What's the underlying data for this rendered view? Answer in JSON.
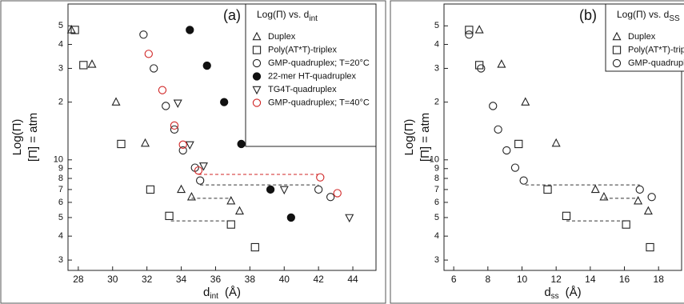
{
  "chart_data": [
    {
      "type": "scatter",
      "panel_label": "(a)",
      "legend_title": "Log(Π)  vs.  d",
      "legend_title_sub": "int",
      "xlabel": "d",
      "xlabel_sub": "int",
      "xlabel_unit": "(Å)",
      "ylabel": "Log(Π)",
      "ylabel2": "[Π] = atm",
      "xlim": [
        27.4,
        45.35
      ],
      "xticks": [
        28,
        30,
        32,
        34,
        36,
        38,
        40,
        42,
        44
      ],
      "ylim": [
        2.65,
        65
      ],
      "ylog": true,
      "yticks": [
        3,
        4,
        5,
        6,
        7,
        8,
        9,
        10,
        {
          "value": 20,
          "label": "2"
        },
        {
          "value": 30,
          "label": "3"
        },
        {
          "value": 40,
          "label": "4"
        },
        {
          "value": 50,
          "label": "5"
        }
      ],
      "series": [
        {
          "name": "Duplex",
          "marker": "triangle",
          "color": "#222222",
          "filled": false,
          "x": [
            27.6,
            28.8,
            30.2,
            31.9,
            34.0,
            34.6,
            36.9,
            37.4
          ],
          "values": [
            47.6,
            31.5,
            20,
            12.2,
            7.0,
            6.4,
            6.1,
            5.4
          ]
        },
        {
          "name": "Poly(AT*T)-triplex",
          "marker": "square",
          "color": "#222222",
          "filled": false,
          "x": [
            27.8,
            28.3,
            30.5,
            32.2,
            33.3,
            36.9,
            38.3
          ],
          "values": [
            47.6,
            31.2,
            12.1,
            7.0,
            5.1,
            4.6,
            3.5
          ]
        },
        {
          "name": "GMP-quadruplex; T=20°C",
          "marker": "circle",
          "color": "#222222",
          "filled": false,
          "x": [
            31.8,
            32.4,
            33.1,
            33.6,
            34.1,
            34.8,
            35.1,
            42.0,
            42.7
          ],
          "values": [
            45,
            30,
            19.1,
            14.4,
            11.2,
            9.1,
            7.8,
            7.0,
            6.4
          ]
        },
        {
          "name": "22-mer HT-quadruplex",
          "marker": "circle",
          "color": "#111111",
          "filled": true,
          "x": [
            34.5,
            35.5,
            36.5,
            37.5,
            39.2,
            40.4
          ],
          "values": [
            47.6,
            31,
            20,
            12.1,
            7.0,
            5.0
          ]
        },
        {
          "name": "TG4T-quadruplex",
          "marker": "triangle-down",
          "color": "#222222",
          "filled": false,
          "x": [
            33.8,
            34.5,
            35.3,
            40.0,
            43.8
          ],
          "values": [
            19.8,
            12,
            9.3,
            7.0,
            5.0
          ]
        },
        {
          "name": "GMP-quadruplex; T=40°C",
          "marker": "circle",
          "color": "#d02424",
          "filled": false,
          "x": [
            32.1,
            32.9,
            33.6,
            34.1,
            35.0,
            42.1,
            43.1
          ],
          "values": [
            35.7,
            23.1,
            15.1,
            12,
            8.8,
            8.1,
            6.7
          ]
        }
      ],
      "guides": [
        {
          "x": [
            35.0,
            42.0
          ],
          "y": 8.4,
          "color": "#d02424"
        },
        {
          "x": [
            35.1,
            42.0
          ],
          "y": 7.4,
          "color": "#333333"
        },
        {
          "x": [
            34.6,
            36.9
          ],
          "y": 6.3,
          "color": "#333333"
        },
        {
          "x": [
            33.4,
            36.9
          ],
          "y": 4.8,
          "color": "#333333"
        }
      ]
    },
    {
      "type": "scatter",
      "panel_label": "(b)",
      "legend_title": "Log(Π)  vs.  d",
      "legend_title_sub": "SS",
      "xlabel": "d",
      "xlabel_sub": "ss",
      "xlabel_unit": "(Å)",
      "ylabel": "Log(Π)",
      "ylabel2": "[Π] = atm",
      "xlim": [
        5.43,
        19.35
      ],
      "xticks": [
        6,
        8,
        10,
        12,
        14,
        16,
        18
      ],
      "ylim": [
        2.65,
        65
      ],
      "ylog": true,
      "yticks": [
        3,
        4,
        5,
        6,
        7,
        8,
        9,
        10,
        {
          "value": 20,
          "label": "2"
        },
        {
          "value": 30,
          "label": "3"
        },
        {
          "value": 40,
          "label": "4"
        },
        {
          "value": 50,
          "label": "5"
        }
      ],
      "series": [
        {
          "name": "Duplex",
          "marker": "triangle",
          "color": "#222222",
          "filled": false,
          "x": [
            7.5,
            8.8,
            10.2,
            12.0,
            14.3,
            14.8,
            16.8,
            17.4
          ],
          "values": [
            47.6,
            31.5,
            20,
            12.2,
            7.0,
            6.4,
            6.1,
            5.4
          ]
        },
        {
          "name": "Poly(AT*T)-triplex",
          "marker": "square",
          "color": "#222222",
          "filled": false,
          "x": [
            6.9,
            7.5,
            9.8,
            11.5,
            12.6,
            16.1,
            17.5
          ],
          "values": [
            47.6,
            31.2,
            12.1,
            7.0,
            5.1,
            4.6,
            3.5
          ]
        },
        {
          "name": "GMP-quadruplex",
          "marker": "circle",
          "color": "#222222",
          "filled": false,
          "x": [
            6.9,
            7.6,
            8.3,
            8.6,
            9.1,
            9.6,
            10.1,
            16.9,
            17.6
          ],
          "values": [
            45,
            30,
            19.1,
            14.4,
            11.2,
            9.1,
            7.8,
            7.0,
            6.4
          ]
        }
      ],
      "guides": [
        {
          "x": [
            10.2,
            16.9
          ],
          "y": 7.4,
          "color": "#333333"
        },
        {
          "x": [
            14.8,
            16.8
          ],
          "y": 6.3,
          "color": "#333333"
        },
        {
          "x": [
            12.6,
            16.1
          ],
          "y": 4.8,
          "color": "#333333"
        }
      ]
    }
  ]
}
